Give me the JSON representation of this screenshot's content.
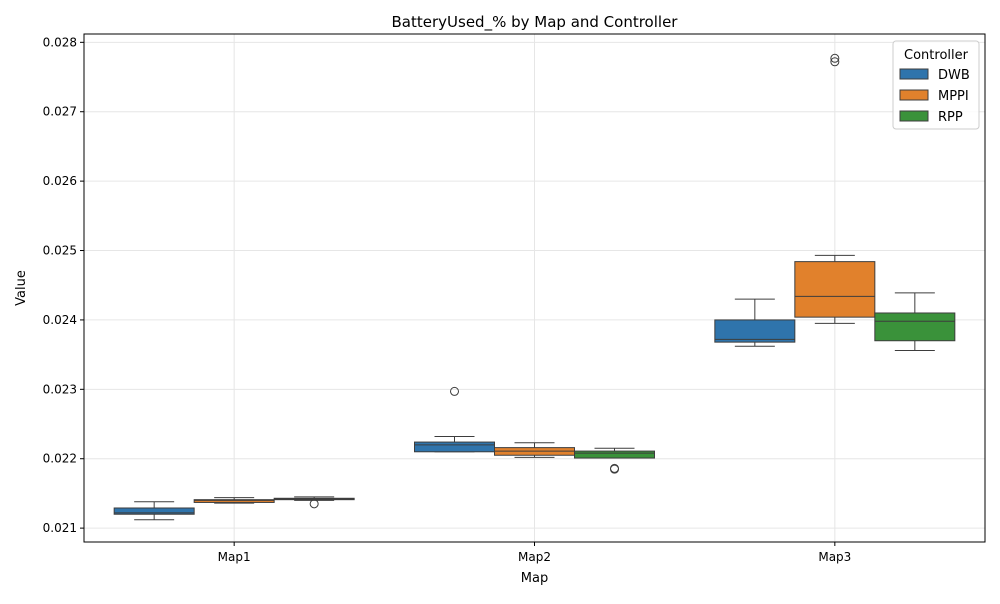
{
  "chart_data": {
    "type": "box",
    "title": "BatteryUsed_% by Map and Controller",
    "xlabel": "Map",
    "ylabel": "Value",
    "categories": [
      "Map1",
      "Map2",
      "Map3"
    ],
    "ylim": [
      0.0208,
      0.02812
    ],
    "yticks": [
      0.021,
      0.022,
      0.023,
      0.024,
      0.025,
      0.026,
      0.027,
      0.028
    ],
    "ytick_labels": [
      "0.021",
      "0.022",
      "0.023",
      "0.024",
      "0.025",
      "0.026",
      "0.027",
      "0.028"
    ],
    "grid": true,
    "legend": {
      "title": "Controller",
      "position": "top-right"
    },
    "series": [
      {
        "name": "DWB",
        "color": "#2f74ac",
        "boxes": [
          {
            "whisker_low": 0.02112,
            "q1": 0.0212,
            "median": 0.02122,
            "q3": 0.02129,
            "whisker_high": 0.02138,
            "outliers": []
          },
          {
            "whisker_low": 0.0221,
            "q1": 0.0221,
            "median": 0.0222,
            "q3": 0.02224,
            "whisker_high": 0.02232,
            "outliers": [
              0.02297
            ]
          },
          {
            "whisker_low": 0.02362,
            "q1": 0.02368,
            "median": 0.02372,
            "q3": 0.024,
            "whisker_high": 0.0243,
            "outliers": []
          }
        ]
      },
      {
        "name": "MPPI",
        "color": "#e1812c",
        "boxes": [
          {
            "whisker_low": 0.02136,
            "q1": 0.02137,
            "median": 0.0214,
            "q3": 0.02141,
            "whisker_high": 0.02144,
            "outliers": []
          },
          {
            "whisker_low": 0.02202,
            "q1": 0.02205,
            "median": 0.02211,
            "q3": 0.02216,
            "whisker_high": 0.02223,
            "outliers": []
          },
          {
            "whisker_low": 0.02395,
            "q1": 0.02404,
            "median": 0.02434,
            "q3": 0.02484,
            "whisker_high": 0.02493,
            "outliers": [
              0.02772,
              0.02777
            ]
          }
        ]
      },
      {
        "name": "RPP",
        "color": "#3a923a",
        "boxes": [
          {
            "whisker_low": 0.0214,
            "q1": 0.02141,
            "median": 0.02142,
            "q3": 0.02143,
            "whisker_high": 0.02145,
            "outliers": [
              0.02135
            ]
          },
          {
            "whisker_low": 0.02201,
            "q1": 0.02201,
            "median": 0.02208,
            "q3": 0.02211,
            "whisker_high": 0.02215,
            "outliers": [
              0.02185,
              0.02186
            ]
          },
          {
            "whisker_low": 0.02356,
            "q1": 0.0237,
            "median": 0.02398,
            "q3": 0.0241,
            "whisker_high": 0.02439,
            "outliers": []
          }
        ]
      }
    ]
  }
}
